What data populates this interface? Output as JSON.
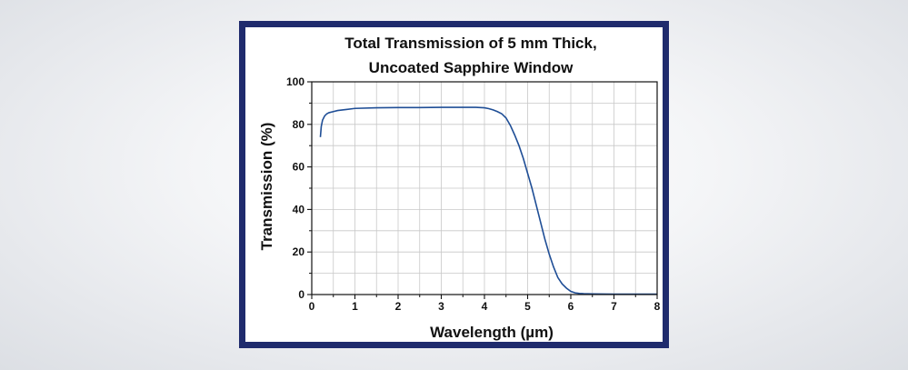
{
  "chart_data": {
    "type": "line",
    "title_lines": [
      "Total Transmission of 5 mm Thick,",
      "Uncoated Sapphire Window"
    ],
    "xlabel": "Wavelength (µm)",
    "ylabel": "Transmission (%)",
    "xlim": [
      0,
      8
    ],
    "ylim": [
      0,
      100
    ],
    "xticks": [
      0,
      1,
      2,
      3,
      4,
      5,
      6,
      7,
      8
    ],
    "yticks": [
      0,
      20,
      40,
      60,
      80,
      100
    ],
    "grid": true,
    "line_color": "#1f4e96",
    "series": [
      {
        "x": [
          0.2,
          0.22,
          0.25,
          0.3,
          0.35,
          0.4,
          0.5,
          0.6,
          0.8,
          1.0,
          1.5,
          2.0,
          2.5,
          3.0,
          3.5,
          3.8,
          4.0,
          4.1,
          4.2,
          4.3,
          4.4,
          4.5,
          4.6,
          4.7,
          4.8,
          4.9,
          5.0,
          5.1,
          5.2,
          5.3,
          5.4,
          5.5,
          5.6,
          5.7,
          5.8,
          5.9,
          6.0,
          6.1,
          6.2,
          6.3,
          6.5,
          7.0,
          7.5,
          8.0
        ],
        "y": [
          74,
          79,
          82,
          84,
          85,
          85.5,
          86,
          86.5,
          87,
          87.5,
          87.8,
          87.9,
          87.9,
          88,
          88,
          88,
          87.8,
          87.4,
          86.8,
          86,
          85,
          83,
          79.5,
          75,
          70,
          64,
          57,
          50,
          42,
          34,
          26,
          19,
          13,
          8,
          5,
          3,
          1.5,
          0.8,
          0.5,
          0.4,
          0.3,
          0.2,
          0.2,
          0.2
        ]
      }
    ]
  }
}
